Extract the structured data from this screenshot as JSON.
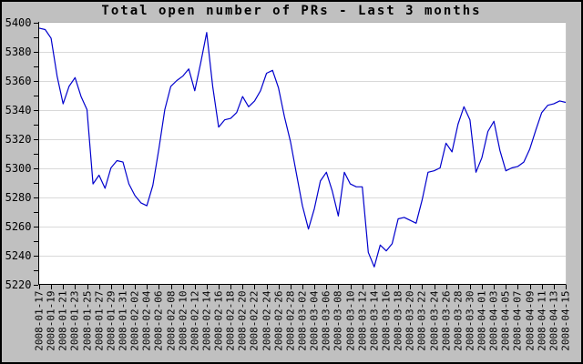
{
  "window": {
    "background_color": "#c0c0c0",
    "border_color": "#000000"
  },
  "chart_data": {
    "type": "line",
    "title": "Total open number of PRs - Last 3 months",
    "xlabel": "",
    "ylabel": "",
    "legend": "none",
    "grid": "horizontal-major",
    "plot_background": "#ffffff",
    "grid_color": "#d9d9d9",
    "axis_color": "#000000",
    "line_color": "#0000cd",
    "ylim": [
      5220,
      5400
    ],
    "y_major_ticks": [
      5220,
      5240,
      5260,
      5280,
      5300,
      5320,
      5340,
      5360,
      5380,
      5400
    ],
    "y_minor_tick_interval": 10,
    "x_tick_step_points": 2,
    "x_tick_labels": [
      "2008-01-17",
      "2008-01-19",
      "2008-01-21",
      "2008-01-23",
      "2008-01-25",
      "2008-01-27",
      "2008-01-29",
      "2008-01-31",
      "2008-02-02",
      "2008-02-04",
      "2008-02-06",
      "2008-02-08",
      "2008-02-10",
      "2008-02-12",
      "2008-02-14",
      "2008-02-16",
      "2008-02-18",
      "2008-02-20",
      "2008-02-22",
      "2008-02-24",
      "2008-02-26",
      "2008-02-28",
      "2008-03-02",
      "2008-03-04",
      "2008-03-06",
      "2008-03-08",
      "2008-03-10",
      "2008-03-12",
      "2008-03-14",
      "2008-03-16",
      "2008-03-18",
      "2008-03-20",
      "2008-03-22",
      "2008-03-24",
      "2008-03-26",
      "2008-03-28",
      "2008-03-30",
      "2008-04-01",
      "2008-04-03",
      "2008-04-05",
      "2008-04-07",
      "2008-04-09",
      "2008-04-11",
      "2008-04-13",
      "2008-04-15"
    ],
    "values": [
      5396,
      5395,
      5389,
      5363,
      5344,
      5356,
      5362,
      5349,
      5340,
      5289,
      5295,
      5286,
      5300,
      5305,
      5304,
      5289,
      5281,
      5276,
      5274,
      5288,
      5313,
      5340,
      5356,
      5360,
      5363,
      5368,
      5353,
      5372,
      5393,
      5356,
      5328,
      5333,
      5334,
      5338,
      5349,
      5342,
      5346,
      5353,
      5365,
      5367,
      5355,
      5335,
      5318,
      5296,
      5274,
      5258,
      5272,
      5291,
      5297,
      5284,
      5267,
      5297,
      5289,
      5287,
      5287,
      5242,
      5232,
      5247,
      5243,
      5248,
      5265,
      5266,
      5264,
      5262,
      5278,
      5297,
      5298,
      5300,
      5317,
      5311,
      5330,
      5342,
      5333,
      5297,
      5307,
      5325,
      5332,
      5312,
      5298,
      5300,
      5301,
      5304,
      5313,
      5326,
      5338,
      5343,
      5344,
      5346,
      5345
    ]
  }
}
